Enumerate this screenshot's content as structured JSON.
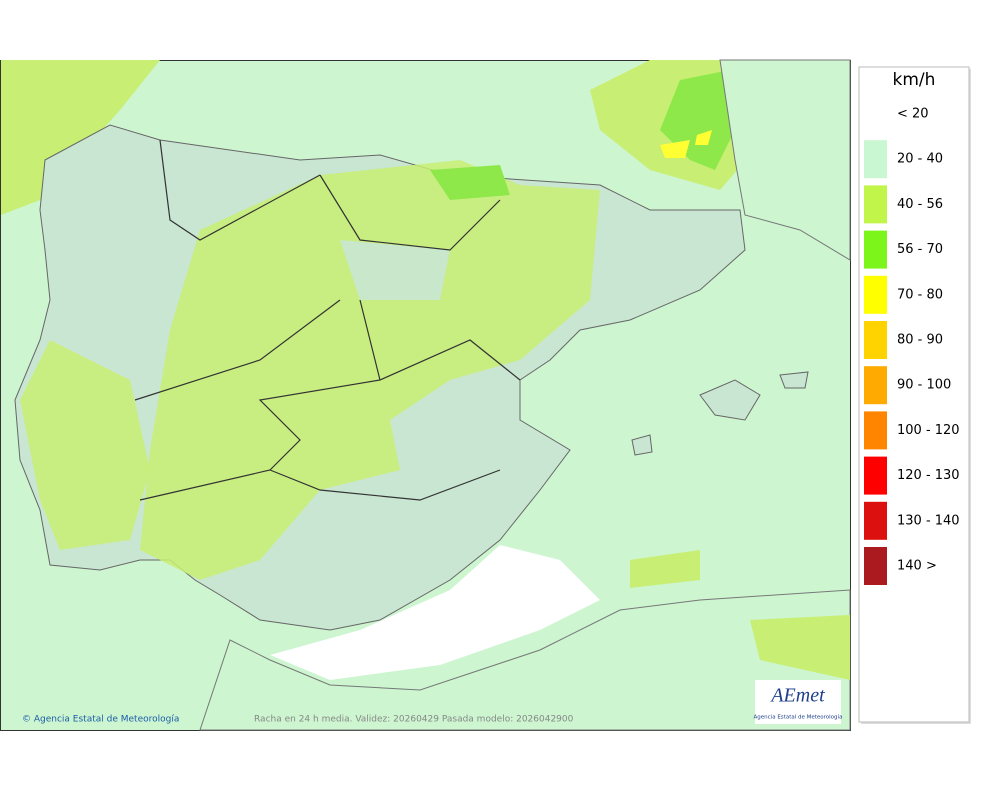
{
  "map": {
    "legend": {
      "unit": "km/h",
      "items": [
        {
          "label": "< 20",
          "color": "#ffffff"
        },
        {
          "label": "20 - 40",
          "color": "#c8f7d2"
        },
        {
          "label": "40 - 56",
          "color": "#c2f54a"
        },
        {
          "label": "56 - 70",
          "color": "#7cf51a"
        },
        {
          "label": "70 - 80",
          "color": "#ffff00"
        },
        {
          "label": "80 - 90",
          "color": "#ffd300"
        },
        {
          "label": "90 - 100",
          "color": "#ffaa00"
        },
        {
          "label": "100 - 120",
          "color": "#ff8400"
        },
        {
          "label": "120 - 130",
          "color": "#ff0000"
        },
        {
          "label": "130 - 140",
          "color": "#dd1010"
        },
        {
          "label": "140 >",
          "color": "#aa1a1f"
        }
      ]
    },
    "credit": "© Agencia Estatal de Meteorología",
    "caption": "Racha en 24 h media. Validez: 20260429 Pasada modelo: 2026042900",
    "logo": {
      "text": "AEmet",
      "subtitle": "Agencia Estatal de Meteorología"
    }
  }
}
